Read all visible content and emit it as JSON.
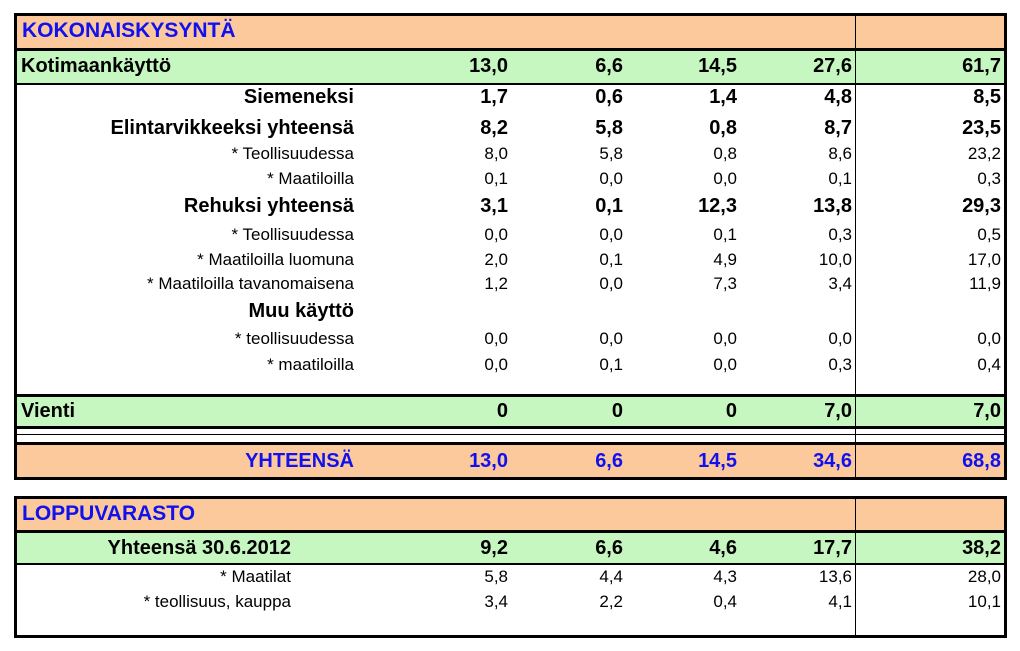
{
  "demand": {
    "header": "KOKONAISKYSYNTÄ",
    "domestic": {
      "label": "Kotimaankäyttö",
      "values": [
        "13,0",
        "6,6",
        "14,5",
        "27,6",
        "61,7"
      ]
    },
    "rows": [
      {
        "label": "Siemeneksi",
        "bold": true,
        "values": [
          "1,7",
          "0,6",
          "1,4",
          "4,8",
          "8,5"
        ]
      },
      {
        "label": "Elintarvikkeeksi yhteensä",
        "bold": true,
        "values": [
          "8,2",
          "5,8",
          "0,8",
          "8,7",
          "23,5"
        ]
      },
      {
        "label": "* Teollisuudessa",
        "bold": false,
        "values": [
          "8,0",
          "5,8",
          "0,8",
          "8,6",
          "23,2"
        ]
      },
      {
        "label": "* Maatiloilla",
        "bold": false,
        "values": [
          "0,1",
          "0,0",
          "0,0",
          "0,1",
          "0,3"
        ]
      },
      {
        "label": "Rehuksi yhteensä",
        "bold": true,
        "values": [
          "3,1",
          "0,1",
          "12,3",
          "13,8",
          "29,3"
        ]
      },
      {
        "label": "* Teollisuudessa",
        "bold": false,
        "values": [
          "0,0",
          "0,0",
          "0,1",
          "0,3",
          "0,5"
        ]
      },
      {
        "label": "* Maatiloilla luomuna",
        "bold": false,
        "values": [
          "2,0",
          "0,1",
          "4,9",
          "10,0",
          "17,0"
        ]
      },
      {
        "label": "* Maatiloilla tavanomaisena",
        "bold": false,
        "values": [
          "1,2",
          "0,0",
          "7,3",
          "3,4",
          "11,9"
        ]
      },
      {
        "label": "Muu käyttö",
        "bold": true,
        "values": [
          "",
          "",
          "",
          "",
          ""
        ]
      },
      {
        "label": "* teollisuudessa",
        "bold": false,
        "values": [
          "0,0",
          "0,0",
          "0,0",
          "0,0",
          "0,0"
        ]
      },
      {
        "label": "* maatiloilla",
        "bold": false,
        "values": [
          "0,0",
          "0,1",
          "0,0",
          "0,3",
          "0,4"
        ]
      }
    ],
    "export": {
      "label": "Vienti",
      "values": [
        "0",
        "0",
        "0",
        "7,0",
        "7,0"
      ]
    },
    "total": {
      "label": "YHTEENSÄ",
      "values": [
        "13,0",
        "6,6",
        "14,5",
        "34,6",
        "68,8"
      ]
    }
  },
  "stock": {
    "header": "LOPPUVARASTO",
    "total": {
      "label": "Yhteensä 30.6.2012",
      "values": [
        "9,2",
        "6,6",
        "4,6",
        "17,7",
        "38,2"
      ]
    },
    "rows": [
      {
        "label": "* Maatilat",
        "values": [
          "5,8",
          "4,4",
          "4,3",
          "13,6",
          "28,0"
        ]
      },
      {
        "label": "* teollisuus, kauppa",
        "values": [
          "3,4",
          "2,2",
          "0,4",
          "4,1",
          "10,1"
        ]
      }
    ]
  }
}
